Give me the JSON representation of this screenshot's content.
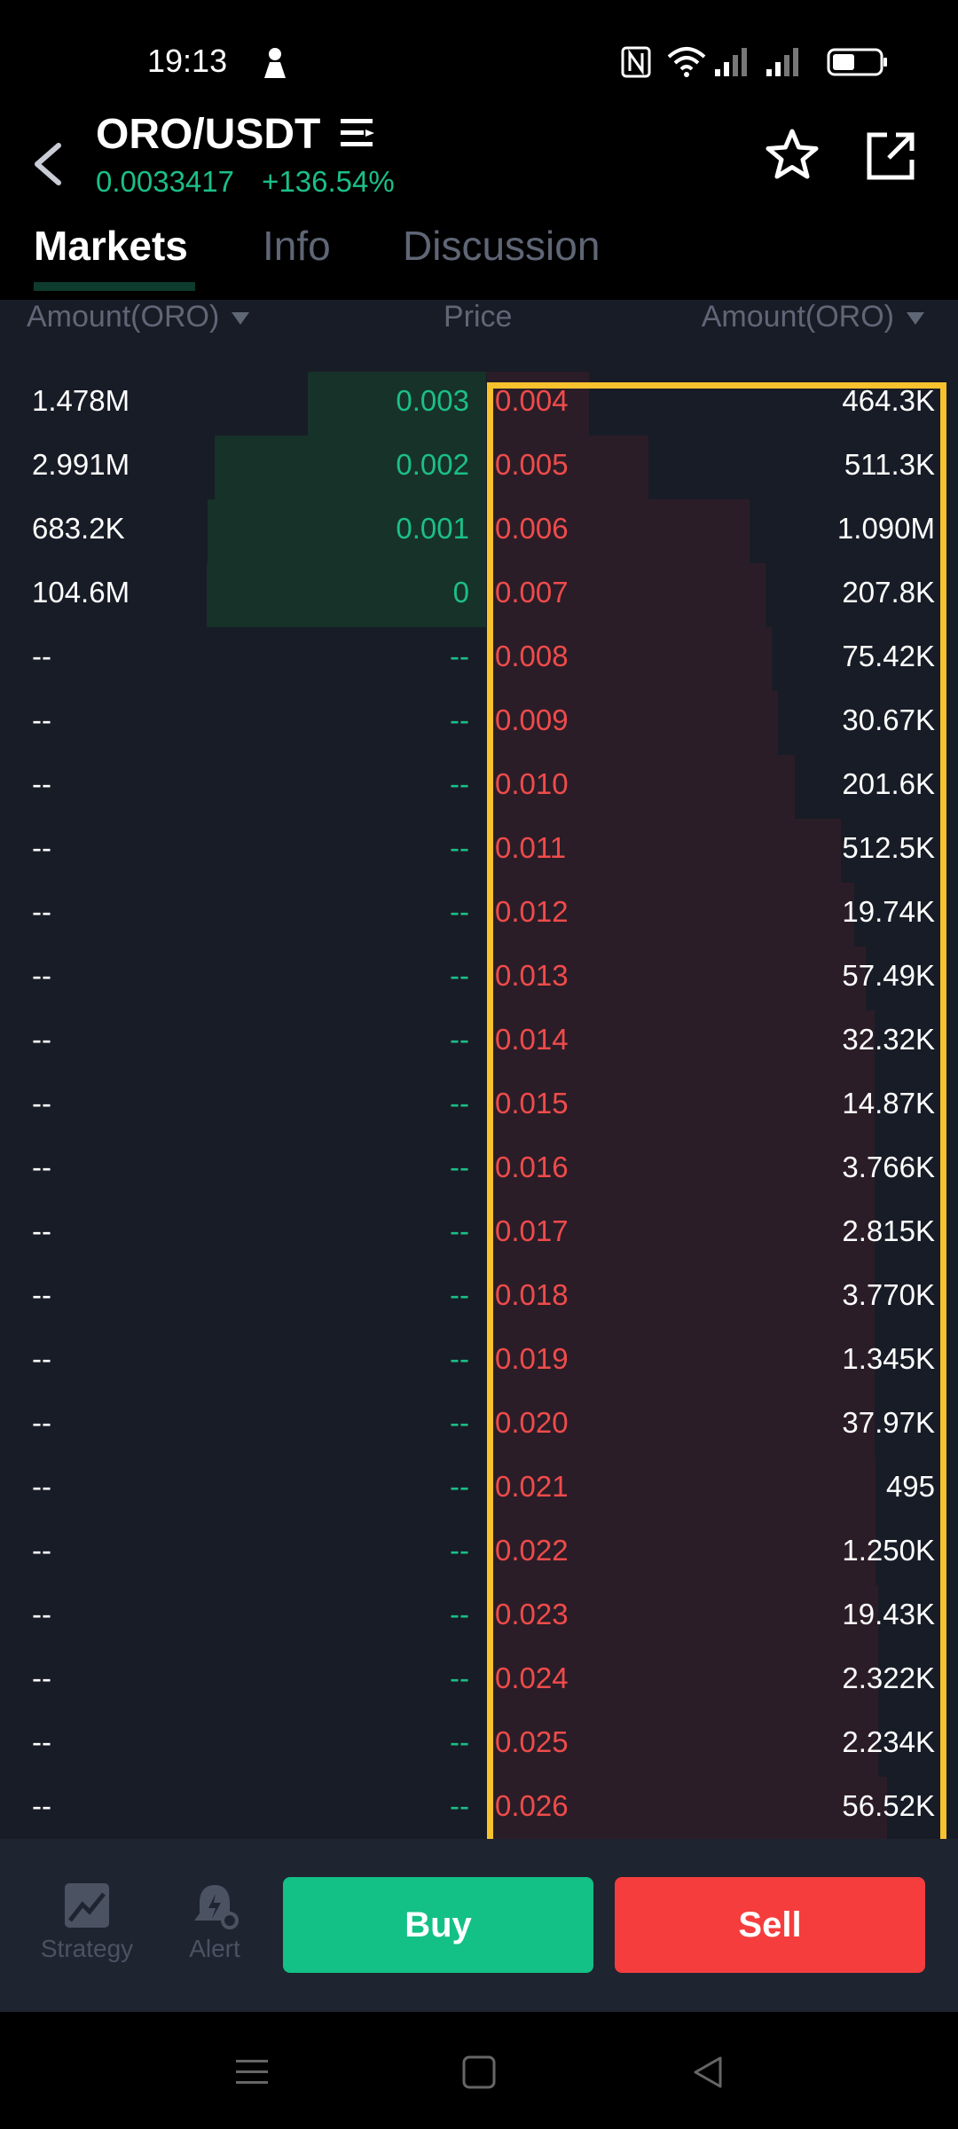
{
  "status": {
    "time": "19:13",
    "icons": [
      "person-icon",
      "nfc-icon",
      "wifi-icon",
      "signal-icon",
      "signal-icon-2",
      "battery-icon"
    ]
  },
  "header": {
    "pair": "ORO/USDT",
    "last_price": "0.0033417",
    "change": "+136.54%",
    "icons": [
      "back-icon",
      "list-menu-icon",
      "star-icon",
      "share-icon"
    ]
  },
  "tabs": [
    {
      "label": "Markets",
      "active": true
    },
    {
      "label": "Info",
      "active": false
    },
    {
      "label": "Discussion",
      "active": false
    }
  ],
  "book_head": {
    "bid_amount": "Amount(ORO)",
    "price": "Price",
    "ask_amount": "Amount(ORO)"
  },
  "rows": [
    {
      "bid_amount": "1.478M",
      "bid_price": "0.003",
      "ask_price": "0.004",
      "ask_amount": "464.3K"
    },
    {
      "bid_amount": "2.991M",
      "bid_price": "0.002",
      "ask_price": "0.005",
      "ask_amount": "511.3K"
    },
    {
      "bid_amount": "683.2K",
      "bid_price": "0.001",
      "ask_price": "0.006",
      "ask_amount": "1.090M"
    },
    {
      "bid_amount": "104.6M",
      "bid_price": "0",
      "ask_price": "0.007",
      "ask_amount": "207.8K"
    },
    {
      "bid_amount": "--",
      "bid_price": "--",
      "ask_price": "0.008",
      "ask_amount": "75.42K"
    },
    {
      "bid_amount": "--",
      "bid_price": "--",
      "ask_price": "0.009",
      "ask_amount": "30.67K"
    },
    {
      "bid_amount": "--",
      "bid_price": "--",
      "ask_price": "0.010",
      "ask_amount": "201.6K"
    },
    {
      "bid_amount": "--",
      "bid_price": "--",
      "ask_price": "0.011",
      "ask_amount": "512.5K"
    },
    {
      "bid_amount": "--",
      "bid_price": "--",
      "ask_price": "0.012",
      "ask_amount": "19.74K"
    },
    {
      "bid_amount": "--",
      "bid_price": "--",
      "ask_price": "0.013",
      "ask_amount": "57.49K"
    },
    {
      "bid_amount": "--",
      "bid_price": "--",
      "ask_price": "0.014",
      "ask_amount": "32.32K"
    },
    {
      "bid_amount": "--",
      "bid_price": "--",
      "ask_price": "0.015",
      "ask_amount": "14.87K"
    },
    {
      "bid_amount": "--",
      "bid_price": "--",
      "ask_price": "0.016",
      "ask_amount": "3.766K"
    },
    {
      "bid_amount": "--",
      "bid_price": "--",
      "ask_price": "0.017",
      "ask_amount": "2.815K"
    },
    {
      "bid_amount": "--",
      "bid_price": "--",
      "ask_price": "0.018",
      "ask_amount": "3.770K"
    },
    {
      "bid_amount": "--",
      "bid_price": "--",
      "ask_price": "0.019",
      "ask_amount": "1.345K"
    },
    {
      "bid_amount": "--",
      "bid_price": "--",
      "ask_price": "0.020",
      "ask_amount": "37.97K"
    },
    {
      "bid_amount": "--",
      "bid_price": "--",
      "ask_price": "0.021",
      "ask_amount": "495"
    },
    {
      "bid_amount": "--",
      "bid_price": "--",
      "ask_price": "0.022",
      "ask_amount": "1.250K"
    },
    {
      "bid_amount": "--",
      "bid_price": "--",
      "ask_price": "0.023",
      "ask_amount": "19.43K"
    },
    {
      "bid_amount": "--",
      "bid_price": "--",
      "ask_price": "0.024",
      "ask_amount": "2.322K"
    },
    {
      "bid_amount": "--",
      "bid_price": "--",
      "ask_price": "0.025",
      "ask_amount": "2.234K"
    },
    {
      "bid_amount": "--",
      "bid_price": "--",
      "ask_price": "0.026",
      "ask_amount": "56.52K"
    }
  ],
  "actions": {
    "strategy": "Strategy",
    "alert": "Alert",
    "buy": "Buy",
    "sell": "Sell"
  },
  "colors": {
    "up": "#1bbf87",
    "down": "#ef4b4b",
    "buy_button": "#13c085",
    "sell_button": "#f53d3d",
    "highlight": "#f7c22e"
  }
}
